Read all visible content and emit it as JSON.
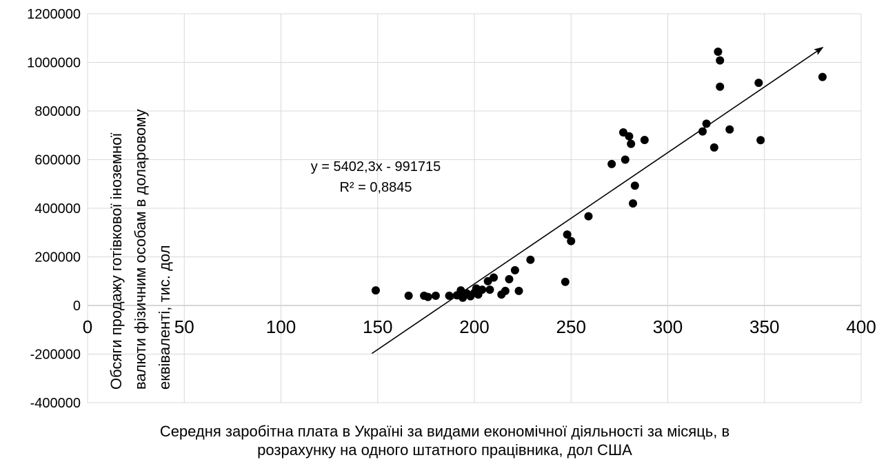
{
  "chart_data": {
    "type": "scatter",
    "xlabel": [
      "Середня заробітна плата в Україні за видами економічної діяльності за місяць, в",
      "розрахунку на одного штатного працівника, дол США"
    ],
    "ylabel": [
      "Обсяги продажу готівкової іноземної",
      "валюти фізичним особам в доларовому",
      "еквіваленті, тис. дол"
    ],
    "xlim": [
      0,
      400
    ],
    "ylim": [
      -400000,
      1200000
    ],
    "x_ticks": [
      0,
      50,
      100,
      150,
      200,
      250,
      300,
      350,
      400
    ],
    "y_ticks": [
      -400000,
      -200000,
      0,
      200000,
      400000,
      600000,
      800000,
      1000000,
      1200000
    ],
    "x_tick_labels": [
      "0",
      "50",
      "100",
      "150",
      "200",
      "250",
      "300",
      "350",
      "400"
    ],
    "y_tick_labels": [
      "-400000",
      "-200000",
      "0",
      "200000",
      "400000",
      "600000",
      "800000",
      "1000000",
      "1200000"
    ],
    "grid": true,
    "points": [
      {
        "x": 149,
        "y": 62000
      },
      {
        "x": 166,
        "y": 40000
      },
      {
        "x": 174,
        "y": 40000
      },
      {
        "x": 176,
        "y": 35000
      },
      {
        "x": 180,
        "y": 40000
      },
      {
        "x": 187,
        "y": 40000
      },
      {
        "x": 191,
        "y": 42000
      },
      {
        "x": 193,
        "y": 62000
      },
      {
        "x": 194,
        "y": 32000
      },
      {
        "x": 196,
        "y": 50000
      },
      {
        "x": 198,
        "y": 38000
      },
      {
        "x": 200,
        "y": 52000
      },
      {
        "x": 201,
        "y": 70000
      },
      {
        "x": 202,
        "y": 45000
      },
      {
        "x": 204,
        "y": 65000
      },
      {
        "x": 207,
        "y": 100000
      },
      {
        "x": 208,
        "y": 65000
      },
      {
        "x": 210,
        "y": 115000
      },
      {
        "x": 214,
        "y": 45000
      },
      {
        "x": 216,
        "y": 60000
      },
      {
        "x": 218,
        "y": 108000
      },
      {
        "x": 221,
        "y": 145000
      },
      {
        "x": 223,
        "y": 60000
      },
      {
        "x": 229,
        "y": 188000
      },
      {
        "x": 247,
        "y": 97000
      },
      {
        "x": 248,
        "y": 292000
      },
      {
        "x": 250,
        "y": 265000
      },
      {
        "x": 259,
        "y": 367000
      },
      {
        "x": 271,
        "y": 582000
      },
      {
        "x": 277,
        "y": 712000
      },
      {
        "x": 278,
        "y": 600000
      },
      {
        "x": 280,
        "y": 696000
      },
      {
        "x": 281,
        "y": 665000
      },
      {
        "x": 282,
        "y": 420000
      },
      {
        "x": 283,
        "y": 493000
      },
      {
        "x": 288,
        "y": 681000
      },
      {
        "x": 318,
        "y": 716000
      },
      {
        "x": 320,
        "y": 748000
      },
      {
        "x": 324,
        "y": 650000
      },
      {
        "x": 326,
        "y": 1044000
      },
      {
        "x": 327,
        "y": 900000
      },
      {
        "x": 327,
        "y": 1008000
      },
      {
        "x": 332,
        "y": 724000
      },
      {
        "x": 347,
        "y": 916000
      },
      {
        "x": 348,
        "y": 680000
      },
      {
        "x": 380,
        "y": 940000
      }
    ],
    "trendline": {
      "slope": 5402.3,
      "intercept": -991715,
      "x_start": 147,
      "x_end": 380,
      "arrow": true
    },
    "annotations": {
      "equation": "y = 5402,3x - 991715",
      "r_squared": "R² = 0,8845"
    },
    "marker_color": "#000000",
    "grid_color": "#d9d9d9"
  }
}
